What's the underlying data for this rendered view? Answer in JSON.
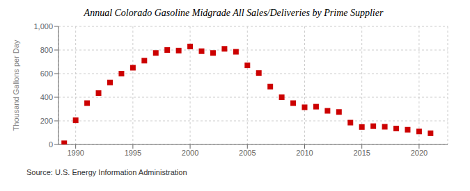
{
  "chart_data": {
    "type": "scatter",
    "title": "Annual Colorado Gasoline Midgrade All Sales/Deliveries by Prime Supplier",
    "ylabel": "Thousand Gallons per Day",
    "annotation": "Source: U.S. Energy Information Administration",
    "color": "#cc0000",
    "marker": "square",
    "grid": true,
    "xlim": [
      1988.5,
      2022.5
    ],
    "ylim": [
      0,
      1000
    ],
    "xticks": [
      1990,
      1995,
      2000,
      2005,
      2010,
      2015,
      2020
    ],
    "yticks": [
      0,
      200,
      400,
      600,
      800,
      {
        "value": 1000,
        "label": "1,000"
      }
    ],
    "x": [
      1989,
      1990,
      1991,
      1992,
      1993,
      1994,
      1995,
      1996,
      1997,
      1998,
      1999,
      2000,
      2001,
      2002,
      2003,
      2004,
      2005,
      2006,
      2007,
      2008,
      2009,
      2010,
      2011,
      2012,
      2013,
      2014,
      2015,
      2016,
      2017,
      2018,
      2019,
      2020,
      2021
    ],
    "values": [
      10,
      205,
      350,
      435,
      525,
      600,
      650,
      710,
      775,
      800,
      795,
      830,
      790,
      775,
      810,
      785,
      670,
      605,
      490,
      400,
      350,
      315,
      320,
      285,
      275,
      185,
      148,
      155,
      150,
      135,
      125,
      110,
      95
    ]
  }
}
